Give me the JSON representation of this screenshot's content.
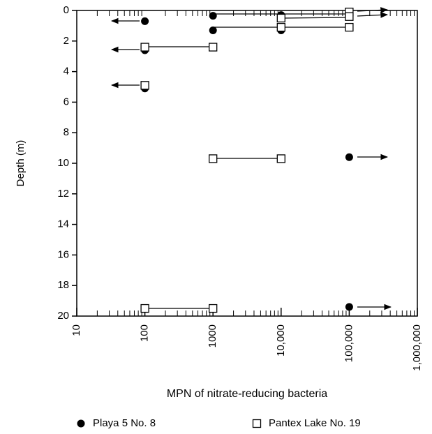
{
  "chart_data": {
    "type": "scatter",
    "xlabel": "MPN of nitrate-reducing bacteria",
    "ylabel": "Depth (m)",
    "xscale": "log",
    "xlim": [
      10,
      1000000
    ],
    "xticks": [
      10,
      100,
      1000,
      {
        "value": 10000,
        "label": "10,000"
      },
      {
        "value": 100000,
        "label": "100,000"
      },
      {
        "value": 1000000,
        "label": "1,000,000"
      }
    ],
    "ylim": [
      20,
      0
    ],
    "yticks": [
      0,
      2,
      4,
      6,
      8,
      10,
      12,
      14,
      16,
      18,
      20
    ],
    "series": [
      {
        "name": "Playa 5 No. 8",
        "marker": "circle",
        "color": "#000000",
        "x": [
          100,
          1000,
          10000,
          1000,
          10000,
          100,
          100,
          100000,
          100000
        ],
        "values": [
          0.7,
          0.35,
          0.3,
          1.3,
          1.3,
          2.6,
          5.1,
          9.6,
          19.4
        ]
      },
      {
        "name": "Pantex Lake No. 19",
        "marker": "square",
        "color": "#000000",
        "x": [
          100000,
          10000,
          100000,
          10000,
          100000,
          100,
          1000,
          100,
          1000,
          10000,
          100,
          1000
        ],
        "values": [
          0.1,
          0.5,
          0.4,
          1.1,
          1.1,
          2.4,
          2.4,
          4.9,
          9.7,
          9.7,
          19.5,
          19.5
        ]
      }
    ]
  }
}
